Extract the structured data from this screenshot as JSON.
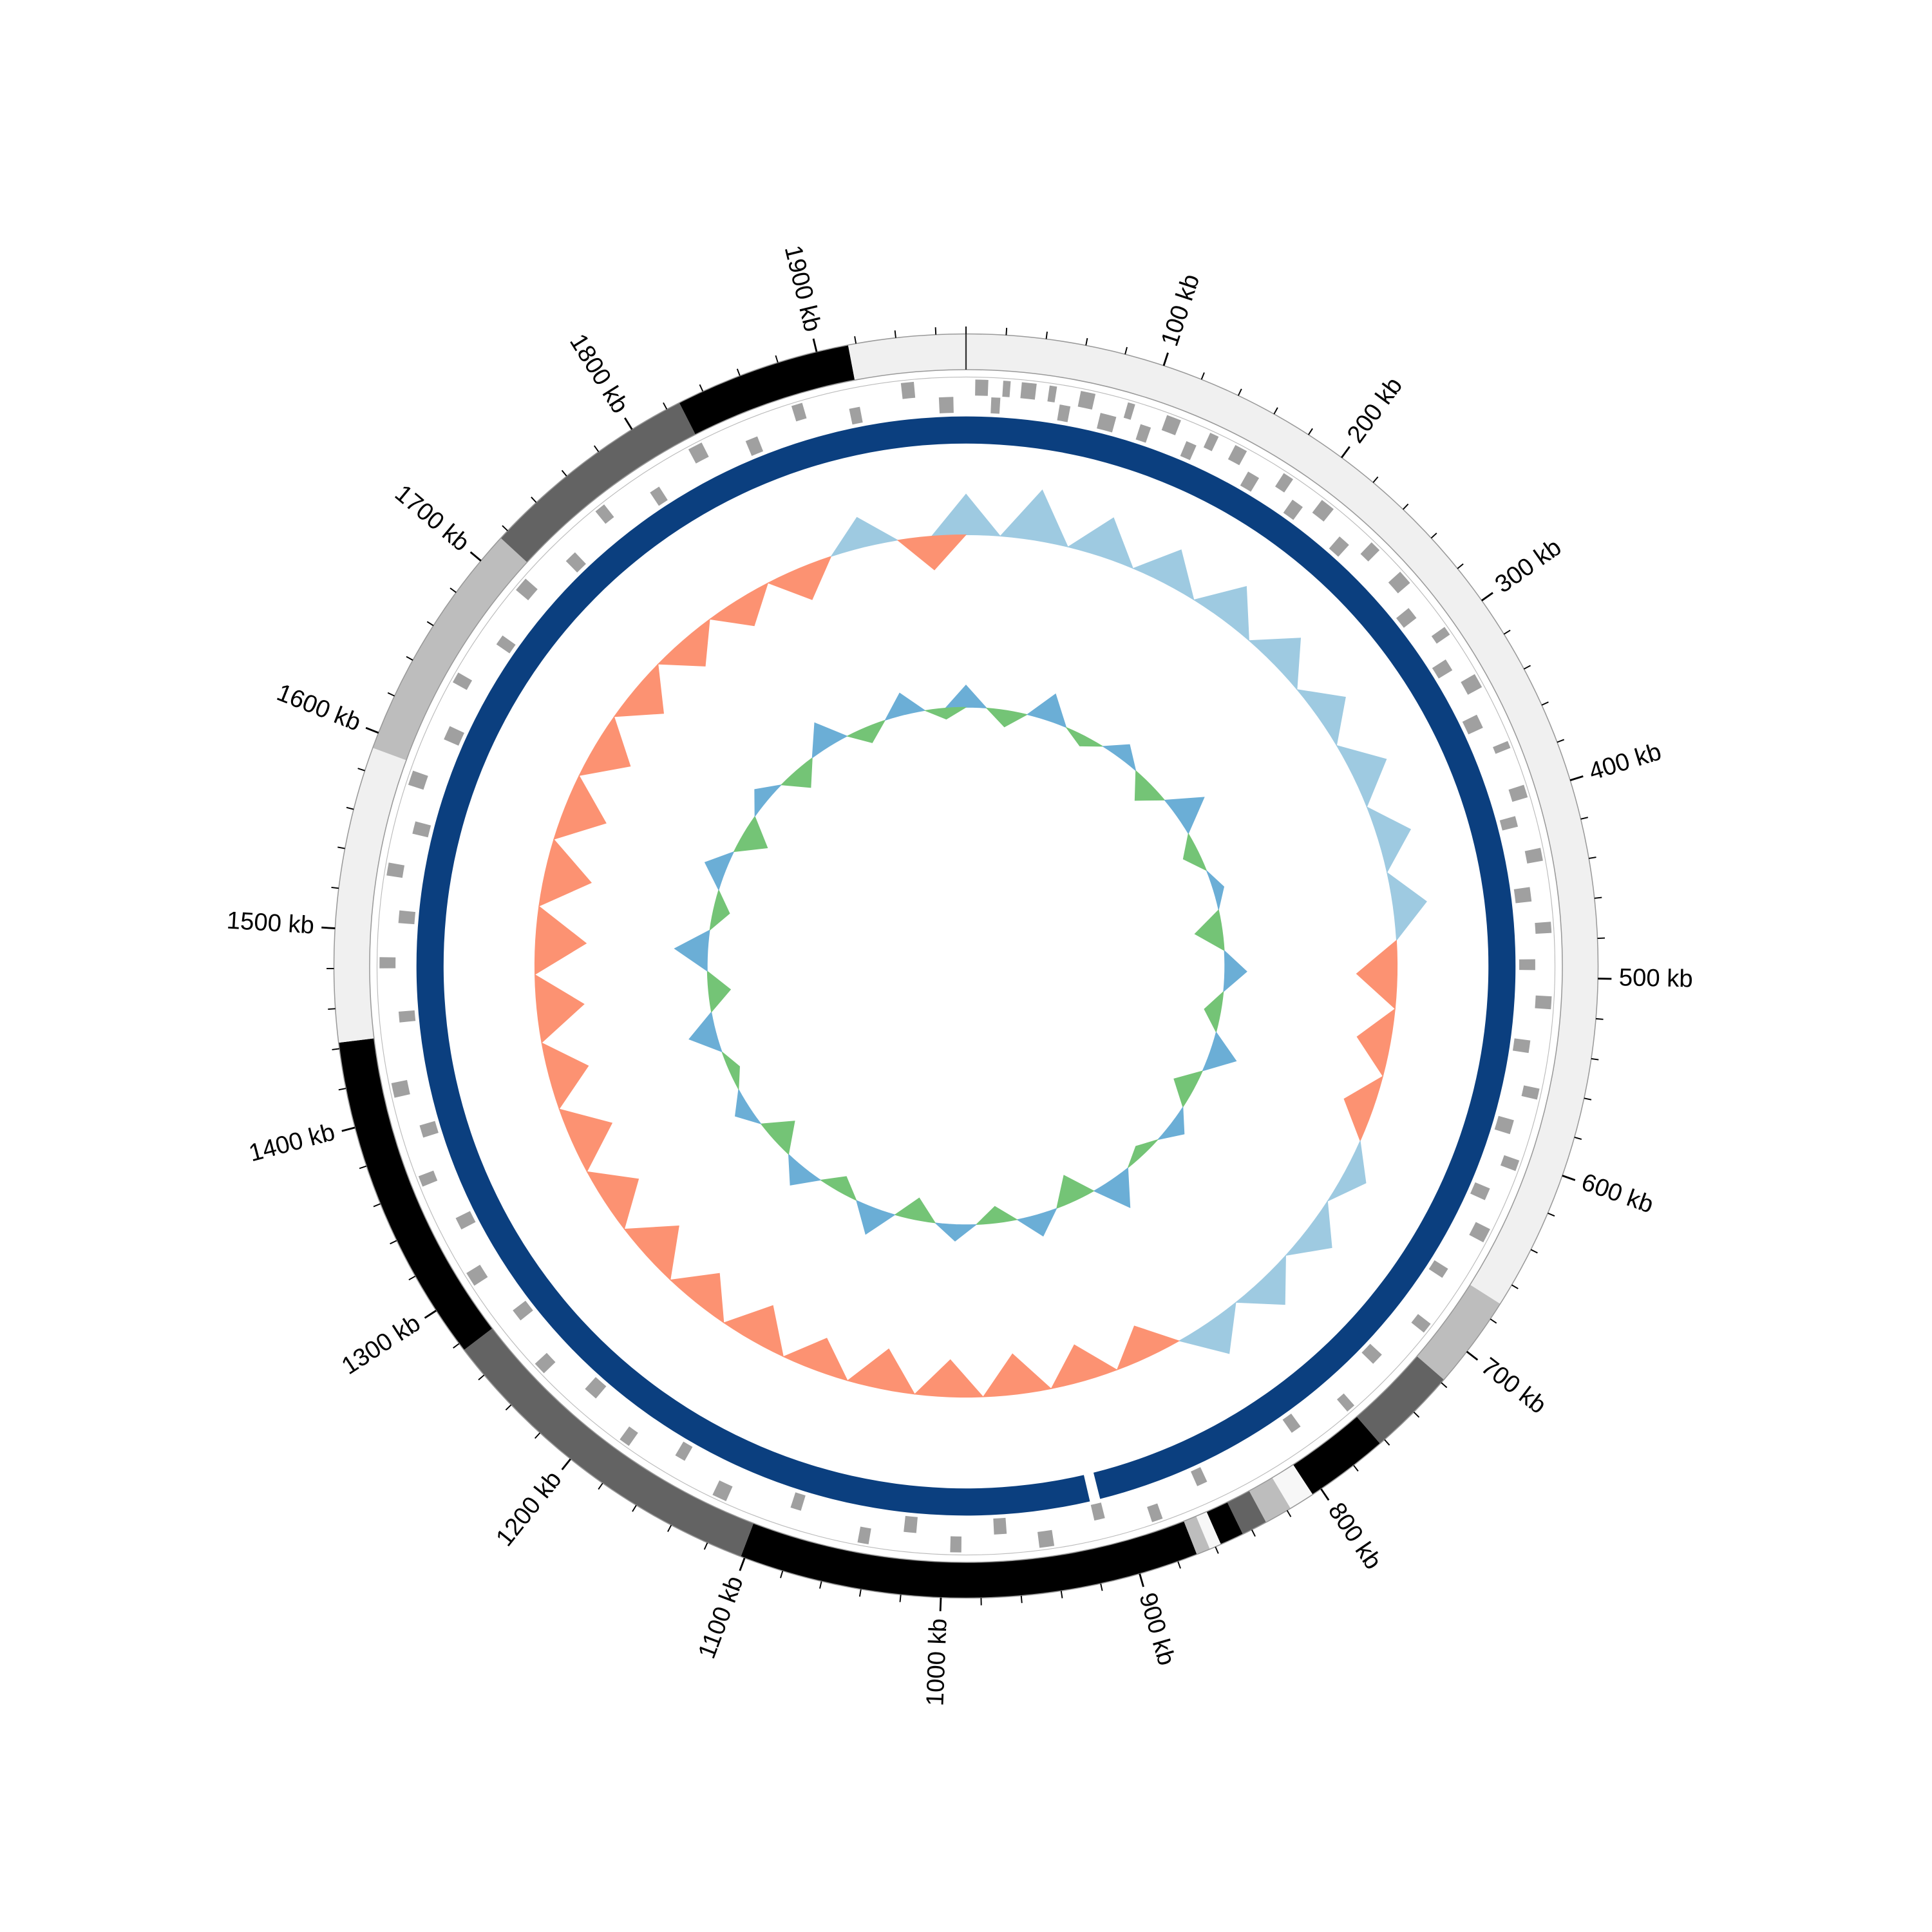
{
  "chart_data": {
    "type": "circular-genome",
    "xlim": [
      0,
      1975
    ],
    "xticks": [
      {
        "value": 100,
        "label": "100 kb"
      },
      {
        "value": 200,
        "label": "200 kb"
      },
      {
        "value": 300,
        "label": "300 kb"
      },
      {
        "value": 400,
        "label": "400 kb"
      },
      {
        "value": 500,
        "label": "500 kb"
      },
      {
        "value": 600,
        "label": "600 kb"
      },
      {
        "value": 700,
        "label": "700 kb"
      },
      {
        "value": 800,
        "label": "800 kb"
      },
      {
        "value": 900,
        "label": "900 kb"
      },
      {
        "value": 1000,
        "label": "1000 kb"
      },
      {
        "value": 1100,
        "label": "1100 kb"
      },
      {
        "value": 1200,
        "label": "1200 kb"
      },
      {
        "value": 1300,
        "label": "1300 kb"
      },
      {
        "value": 1400,
        "label": "1400 kb"
      },
      {
        "value": 1500,
        "label": "1500 kb"
      },
      {
        "value": 1600,
        "label": "1600 kb"
      },
      {
        "value": 1700,
        "label": "1700 kb"
      },
      {
        "value": 1800,
        "label": "1800 kb"
      },
      {
        "value": 1900,
        "label": "1900 kb"
      }
    ],
    "minor_tick_interval": 20,
    "regions": [
      {
        "start": 0,
        "end": 671,
        "color": "#f0f0f0"
      },
      {
        "start": 671,
        "end": 718,
        "color": "#bdbdbd"
      },
      {
        "start": 718,
        "end": 763,
        "color": "#636363"
      },
      {
        "start": 763,
        "end": 805,
        "color": "#000000"
      },
      {
        "start": 805,
        "end": 818,
        "color": "#f7f7f7"
      },
      {
        "start": 818,
        "end": 832,
        "color": "#bdbdbd"
      },
      {
        "start": 832,
        "end": 845,
        "color": "#636363"
      },
      {
        "start": 845,
        "end": 857,
        "color": "#000000"
      },
      {
        "start": 857,
        "end": 863,
        "color": "#f7f7f7"
      },
      {
        "start": 863,
        "end": 870,
        "color": "#bdbdbd"
      },
      {
        "start": 870,
        "end": 1102,
        "color": "#000000"
      },
      {
        "start": 1102,
        "end": 1276,
        "color": "#636363"
      },
      {
        "start": 1276,
        "end": 1443,
        "color": "#000000"
      },
      {
        "start": 1443,
        "end": 1592,
        "color": "#f0f0f0"
      },
      {
        "start": 1592,
        "end": 1715,
        "color": "#bdbdbd"
      },
      {
        "start": 1715,
        "end": 1827,
        "color": "#636363"
      },
      {
        "start": 1827,
        "end": 1916,
        "color": "#000000"
      },
      {
        "start": 1916,
        "end": 1975,
        "color": "#f0f0f0"
      }
    ],
    "genes": {
      "color": "#a0a0a0",
      "forward": [
        [
          5,
          12
        ],
        [
          20,
          24
        ],
        [
          30,
          38
        ],
        [
          45,
          49
        ],
        [
          62,
          70
        ],
        [
          88,
          92
        ],
        [
          110,
          118
        ],
        [
          135,
          140
        ],
        [
          150,
          157
        ],
        [
          180,
          186
        ],
        [
          205,
          213
        ],
        [
          240,
          246
        ],
        [
          262,
          270
        ],
        [
          300,
          305
        ],
        [
          330,
          338
        ],
        [
          370,
          374
        ],
        [
          395,
          402
        ],
        [
          430,
          437
        ],
        [
          470,
          476
        ],
        [
          510,
          517
        ],
        [
          560,
          566
        ],
        [
          600,
          606
        ],
        [
          640,
          648
        ],
        [
          700,
          706
        ],
        [
          760,
          765
        ],
        [
          880,
          886
        ],
        [
          940,
          948
        ],
        [
          990,
          996
        ],
        [
          1040,
          1046
        ],
        [
          1120,
          1128
        ],
        [
          1180,
          1186
        ],
        [
          1240,
          1247
        ],
        [
          1300,
          1308
        ],
        [
          1360,
          1366
        ],
        [
          1410,
          1418
        ],
        [
          1480,
          1486
        ],
        [
          1530,
          1537
        ],
        [
          1580,
          1588
        ],
        [
          1640,
          1646
        ],
        [
          1700,
          1708
        ],
        [
          1760,
          1766
        ],
        [
          1820,
          1828
        ],
        [
          1880,
          1886
        ],
        [
          1940,
          1947
        ]
      ],
      "reverse": [
        [
          14,
          19
        ],
        [
          52,
          58
        ],
        [
          75,
          84
        ],
        [
          98,
          104
        ],
        [
          125,
          131
        ],
        [
          163,
          170
        ],
        [
          192,
          199
        ],
        [
          225,
          232
        ],
        [
          280,
          287
        ],
        [
          315,
          322
        ],
        [
          350,
          358
        ],
        [
          410,
          416
        ],
        [
          450,
          458
        ],
        [
          490,
          496
        ],
        [
          535,
          542
        ],
        [
          580,
          588
        ],
        [
          620,
          627
        ],
        [
          670,
          676
        ],
        [
          730,
          737
        ],
        [
          790,
          796
        ],
        [
          850,
          856
        ],
        [
          910,
          916
        ],
        [
          965,
          972
        ],
        [
          1015,
          1022
        ],
        [
          1080,
          1086
        ],
        [
          1150,
          1156
        ],
        [
          1210,
          1218
        ],
        [
          1270,
          1277
        ],
        [
          1330,
          1337
        ],
        [
          1385,
          1392
        ],
        [
          1450,
          1456
        ],
        [
          1505,
          1512
        ],
        [
          1555,
          1562
        ],
        [
          1610,
          1618
        ],
        [
          1670,
          1676
        ],
        [
          1730,
          1737
        ],
        [
          1790,
          1796
        ],
        [
          1850,
          1857
        ],
        [
          1910,
          1916
        ],
        [
          1960,
          1968
        ]
      ]
    },
    "backbone": {
      "color": "#0b3f7f",
      "segments": [
        {
          "start": 0,
          "end": 910
        },
        {
          "start": 916,
          "end": 1975
        }
      ]
    },
    "x": [
      0,
      50,
      100,
      150,
      200,
      250,
      300,
      350,
      400,
      450,
      500,
      550,
      600,
      650,
      700,
      750,
      800,
      850,
      900,
      950,
      1000,
      1050,
      1100,
      1150,
      1200,
      1250,
      1300,
      1350,
      1400,
      1450,
      1500,
      1550,
      1600,
      1650,
      1700,
      1750,
      1800,
      1850,
      1900,
      1950
    ],
    "series": [
      {
        "positive_color": "#9ecae1",
        "negative_color": "#fc9272",
        "values": [
          0.6,
          0.75,
          0.6,
          0.55,
          0.6,
          0.55,
          0.5,
          0.55,
          0.5,
          0.5,
          -0.6,
          -0.5,
          -0.45,
          0.35,
          0.45,
          0.5,
          0.55,
          -0.5,
          -0.55,
          -0.6,
          -0.55,
          -0.6,
          -0.5,
          -0.6,
          -0.55,
          -0.65,
          -0.6,
          -0.65,
          -0.6,
          -0.7,
          -0.75,
          -0.7,
          -0.65,
          -0.6,
          -0.55,
          -0.5,
          -0.45,
          -0.5,
          0.45,
          -0.5
        ]
      },
      {
        "positive_color": "#6baed6",
        "negative_color": "#74c476",
        "values": [
          0.4,
          -0.3,
          0.5,
          -0.2,
          0.3,
          -0.4,
          0.6,
          -0.3,
          0.2,
          -0.5,
          0.4,
          -0.3,
          0.5,
          -0.4,
          0.3,
          -0.2,
          0.6,
          -0.5,
          0.4,
          -0.3,
          0.3,
          -0.4,
          0.5,
          -0.3,
          0.4,
          -0.5,
          0.3,
          -0.2,
          0.5,
          -0.4,
          0.6,
          -0.3,
          0.4,
          -0.5,
          0.3,
          -0.4,
          0.5,
          -0.3,
          0.4,
          -0.2
        ]
      }
    ]
  }
}
